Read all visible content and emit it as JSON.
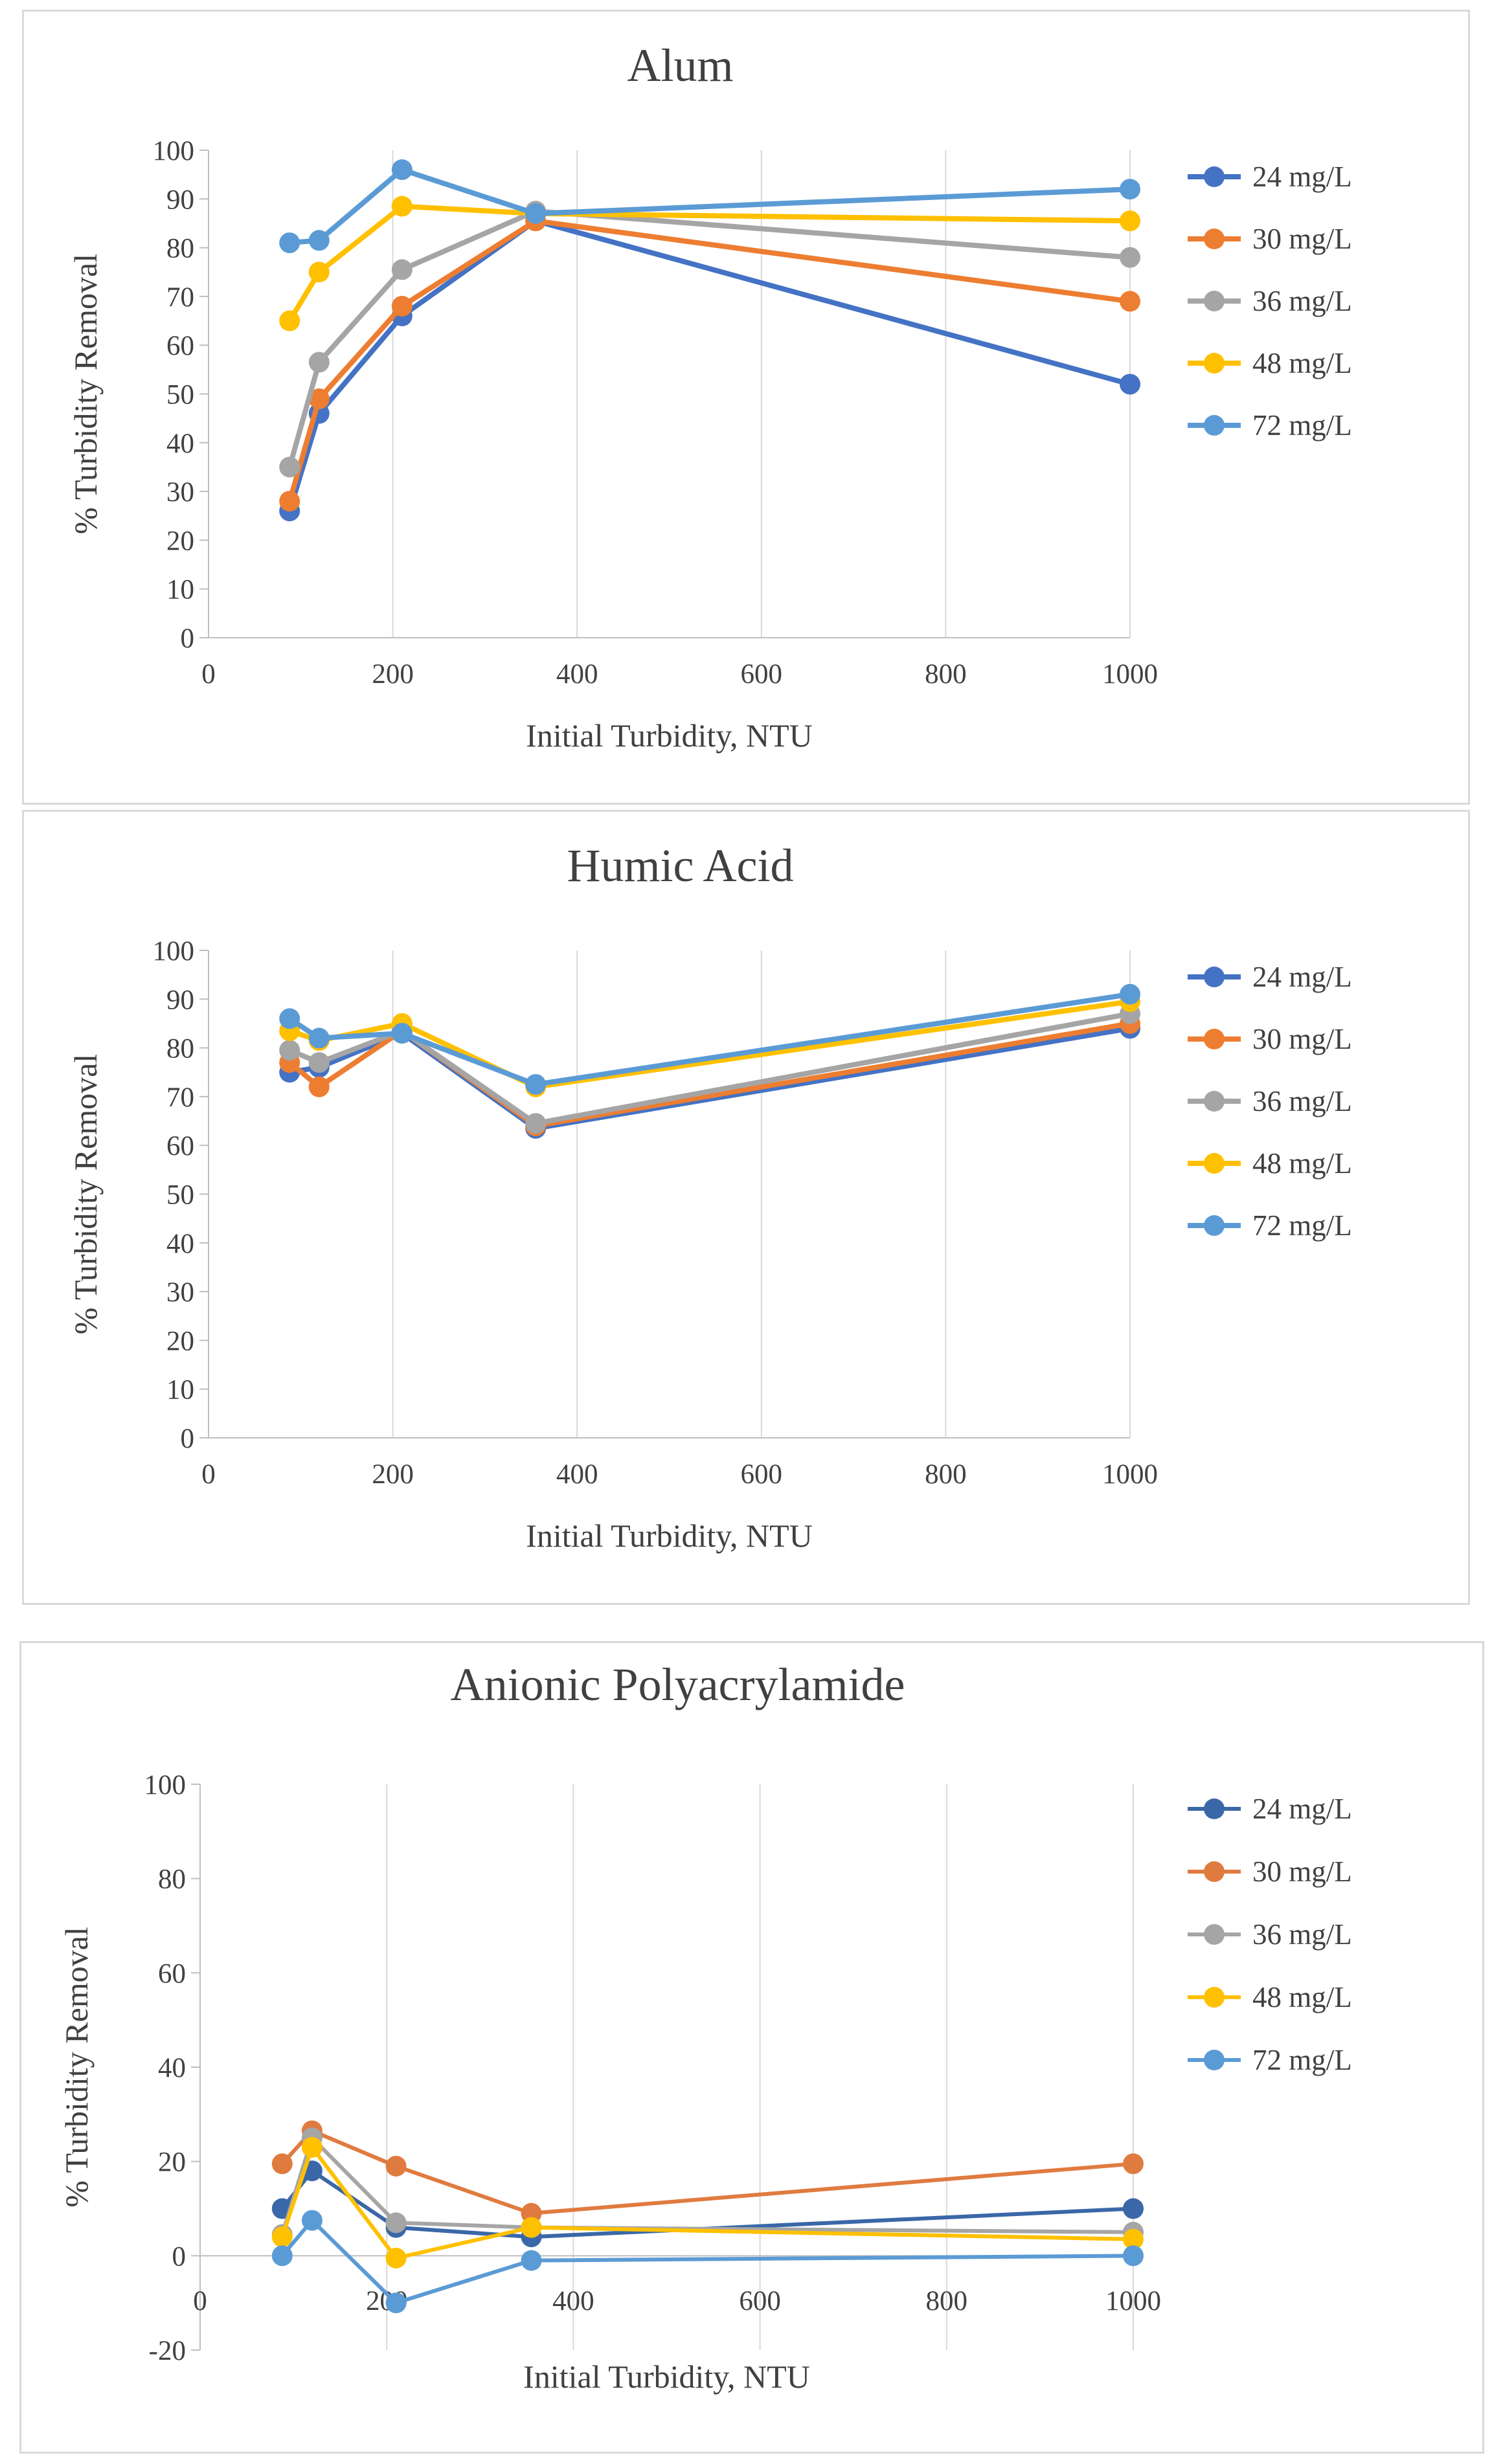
{
  "chart_data": [
    {
      "type": "line",
      "title": "Alum",
      "xlabel": "Initial Turbidity, NTU",
      "ylabel": "% Turbidity Removal",
      "xlim": [
        0,
        1000
      ],
      "ylim": [
        0,
        100
      ],
      "xticks": [
        0,
        200,
        400,
        600,
        800,
        1000
      ],
      "yticks": [
        0,
        10,
        20,
        30,
        40,
        50,
        60,
        70,
        80,
        90,
        100
      ],
      "grid": "vertical",
      "legend": "right",
      "x": [
        88,
        120,
        210,
        355,
        1000
      ],
      "series": [
        {
          "name": "24 mg/L",
          "color": "#4472c4",
          "values": [
            26,
            46,
            66,
            85.5,
            52
          ]
        },
        {
          "name": "30 mg/L",
          "color": "#ed7d31",
          "values": [
            28,
            49,
            68,
            85.5,
            69
          ]
        },
        {
          "name": "36  mg/L",
          "color": "#a5a5a5",
          "values": [
            35,
            56.5,
            75.5,
            87.5,
            78
          ]
        },
        {
          "name": "48 mg/L",
          "color": "#ffc000",
          "values": [
            65,
            75,
            88.5,
            87,
            85.5
          ]
        },
        {
          "name": "72 mg/L",
          "color": "#5b9bd5",
          "values": [
            81,
            81.5,
            96,
            87,
            92
          ]
        }
      ]
    },
    {
      "type": "line",
      "title": "Humic Acid",
      "xlabel": "Initial Turbidity, NTU",
      "ylabel": "% Turbidity Removal",
      "xlim": [
        0,
        1000
      ],
      "ylim": [
        0,
        100
      ],
      "xticks": [
        0,
        200,
        400,
        600,
        800,
        1000
      ],
      "yticks": [
        0,
        10,
        20,
        30,
        40,
        50,
        60,
        70,
        80,
        90,
        100
      ],
      "grid": "vertical",
      "legend": "right",
      "x": [
        88,
        120,
        210,
        355,
        1000
      ],
      "series": [
        {
          "name": "24 mg/L",
          "color": "#4472c4",
          "values": [
            75,
            76,
            83,
            63.5,
            84
          ]
        },
        {
          "name": "30 mg/L",
          "color": "#ed7d31",
          "values": [
            77,
            72,
            83.5,
            64,
            85
          ]
        },
        {
          "name": "36  mg/L",
          "color": "#a5a5a5",
          "values": [
            79.5,
            77,
            83.5,
            64.5,
            87
          ]
        },
        {
          "name": "48 mg/L",
          "color": "#ffc000",
          "values": [
            83.5,
            81.5,
            85,
            72,
            89.5
          ]
        },
        {
          "name": "72 mg/L",
          "color": "#5b9bd5",
          "values": [
            86,
            82,
            83,
            72.5,
            91
          ]
        }
      ]
    },
    {
      "type": "line",
      "title": "Anionic Polyacrylamide",
      "xlabel": "Initial Turbidity, NTU",
      "ylabel": "% Turbidity Removal",
      "xlim": [
        0,
        1000
      ],
      "ylim": [
        -20,
        100
      ],
      "xticks": [
        0,
        200,
        400,
        600,
        800,
        1000
      ],
      "yticks": [
        -20,
        0,
        20,
        40,
        60,
        80,
        100
      ],
      "grid": "vertical",
      "legend": "right",
      "x": [
        88,
        120,
        210,
        355,
        1000
      ],
      "series": [
        {
          "name": "24 mg/L",
          "color": "#3a67a8",
          "values": [
            10,
            18,
            6,
            4,
            10
          ]
        },
        {
          "name": "30 mg/L",
          "color": "#e07b3f",
          "values": [
            19.5,
            26.5,
            19,
            9,
            19.5
          ]
        },
        {
          "name": "36  mg/L",
          "color": "#a5a5a5",
          "values": [
            4.5,
            25,
            7,
            6,
            5
          ]
        },
        {
          "name": "48 mg/L",
          "color": "#ffc000",
          "values": [
            4,
            23,
            -0.5,
            6,
            3.5
          ]
        },
        {
          "name": "72 mg/L",
          "color": "#5b9bd5",
          "values": [
            0,
            7.5,
            -10,
            -1,
            0
          ]
        }
      ]
    }
  ]
}
